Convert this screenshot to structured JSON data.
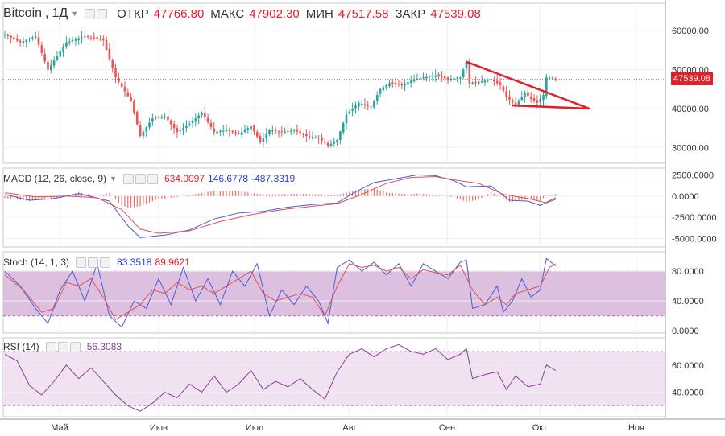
{
  "header": {
    "symbol": "Bitcoin",
    "interval": "1Д",
    "open_label": "ОТКР",
    "open": "47766.80",
    "high_label": "МАКС",
    "high": "47902.30",
    "low_label": "МИН",
    "low": "47517.58",
    "close_label": "ЗАКР",
    "close": "47539.08"
  },
  "last_price": "47539.08",
  "colors": {
    "up": "#26a69a",
    "down": "#ef5350",
    "drawing": "#e0202a",
    "macd": "#4a5ad8",
    "signal": "#e05050",
    "stoch_k": "#4a5ad8",
    "stoch_d": "#e05050",
    "rsi": "#8a3f98"
  },
  "macd": {
    "title": "MACD (12, 26, close, 9)",
    "v1": "634.0097",
    "v2": "146.6778",
    "v3": "-487.3319"
  },
  "stoch": {
    "title": "Stoch (14, 1, 3)",
    "k": "83.3518",
    "d": "89.9621"
  },
  "rsi": {
    "title": "RSI (14)",
    "v": "56.3083"
  },
  "chart_data": {
    "type": "candlestick",
    "x_labels": [
      "Май",
      "Июн",
      "Июл",
      "Авг",
      "Сен",
      "Окт",
      "Ноя"
    ],
    "price_axis": {
      "ticks": [
        "60000.00",
        "50000.00",
        "40000.00",
        "30000.00"
      ],
      "tick_values": [
        60000,
        50000,
        40000,
        30000
      ],
      "range": [
        26000,
        67000
      ]
    },
    "macd_axis": {
      "ticks": [
        "2500.0000",
        "0.0000",
        "-2500.0000",
        "-5000.0000"
      ],
      "tick_values": [
        2500,
        0,
        -2500,
        -5000
      ],
      "range": [
        -6000,
        3300
      ]
    },
    "stoch_axis": {
      "ticks": [
        "80.0000",
        "40.0000",
        "0.0000"
      ],
      "tick_values": [
        80,
        40,
        0
      ],
      "band": [
        20,
        80
      ],
      "range": [
        -3,
        106
      ]
    },
    "rsi_axis": {
      "ticks": [
        "60.0000",
        "40.0000"
      ],
      "tick_values": [
        60,
        40
      ],
      "band": [
        30,
        70
      ],
      "range": [
        22,
        80
      ]
    },
    "close_path": [
      [
        0,
        59000
      ],
      [
        5,
        57000
      ],
      [
        10,
        58500
      ],
      [
        14,
        50000
      ],
      [
        20,
        57000
      ],
      [
        26,
        58500
      ],
      [
        32,
        57500
      ],
      [
        36,
        48000
      ],
      [
        41,
        42000
      ],
      [
        44,
        33000
      ],
      [
        48,
        37500
      ],
      [
        52,
        38000
      ],
      [
        56,
        34000
      ],
      [
        60,
        36000
      ],
      [
        64,
        39000
      ],
      [
        68,
        34000
      ],
      [
        72,
        34500
      ],
      [
        76,
        33500
      ],
      [
        80,
        35500
      ],
      [
        83,
        31500
      ],
      [
        86,
        34500
      ],
      [
        90,
        34000
      ],
      [
        94,
        34500
      ],
      [
        98,
        33000
      ],
      [
        102,
        32500
      ],
      [
        105,
        30500
      ],
      [
        108,
        32000
      ],
      [
        111,
        38500
      ],
      [
        115,
        41500
      ],
      [
        119,
        40500
      ],
      [
        122,
        45000
      ],
      [
        125,
        46500
      ],
      [
        129,
        46000
      ],
      [
        133,
        47500
      ],
      [
        136,
        48000
      ],
      [
        140,
        48500
      ],
      [
        144,
        47500
      ],
      [
        148,
        48000
      ],
      [
        150,
        52000
      ],
      [
        151,
        46500
      ],
      [
        155,
        47000
      ],
      [
        158,
        47500
      ],
      [
        161,
        46000
      ],
      [
        163,
        43000
      ],
      [
        166,
        41000
      ],
      [
        169,
        44000
      ],
      [
        171,
        42500
      ],
      [
        173,
        41500
      ],
      [
        175,
        43500
      ],
      [
        176,
        48000
      ],
      [
        178,
        47900
      ],
      [
        179,
        47539
      ]
    ],
    "macd_path": [
      [
        0,
        200
      ],
      [
        8,
        -500
      ],
      [
        16,
        -300
      ],
      [
        24,
        300
      ],
      [
        34,
        -600
      ],
      [
        40,
        -3500
      ],
      [
        44,
        -4900
      ],
      [
        52,
        -4600
      ],
      [
        60,
        -4000
      ],
      [
        68,
        -2700
      ],
      [
        76,
        -2000
      ],
      [
        84,
        -1800
      ],
      [
        92,
        -1300
      ],
      [
        100,
        -1000
      ],
      [
        108,
        -800
      ],
      [
        114,
        500
      ],
      [
        120,
        1600
      ],
      [
        128,
        2100
      ],
      [
        134,
        2500
      ],
      [
        140,
        2400
      ],
      [
        146,
        1800
      ],
      [
        150,
        1100
      ],
      [
        158,
        1200
      ],
      [
        164,
        -500
      ],
      [
        170,
        -600
      ],
      [
        174,
        -1100
      ],
      [
        179,
        -200
      ]
    ],
    "signal_path": [
      [
        0,
        400
      ],
      [
        10,
        -100
      ],
      [
        20,
        0
      ],
      [
        30,
        -200
      ],
      [
        38,
        -1600
      ],
      [
        44,
        -3900
      ],
      [
        50,
        -4400
      ],
      [
        60,
        -4100
      ],
      [
        70,
        -3000
      ],
      [
        80,
        -2200
      ],
      [
        90,
        -1600
      ],
      [
        100,
        -1200
      ],
      [
        108,
        -900
      ],
      [
        116,
        200
      ],
      [
        124,
        1500
      ],
      [
        132,
        2200
      ],
      [
        140,
        2300
      ],
      [
        148,
        1800
      ],
      [
        154,
        1500
      ],
      [
        162,
        200
      ],
      [
        170,
        -300
      ],
      [
        176,
        -800
      ],
      [
        179,
        -400
      ]
    ],
    "stoch_k_path": [
      [
        0,
        80
      ],
      [
        5,
        60
      ],
      [
        10,
        30
      ],
      [
        14,
        10
      ],
      [
        18,
        55
      ],
      [
        22,
        80
      ],
      [
        26,
        40
      ],
      [
        30,
        90
      ],
      [
        34,
        20
      ],
      [
        38,
        5
      ],
      [
        42,
        40
      ],
      [
        46,
        30
      ],
      [
        50,
        70
      ],
      [
        54,
        35
      ],
      [
        58,
        85
      ],
      [
        62,
        40
      ],
      [
        66,
        70
      ],
      [
        70,
        35
      ],
      [
        74,
        80
      ],
      [
        78,
        60
      ],
      [
        82,
        90
      ],
      [
        86,
        20
      ],
      [
        90,
        55
      ],
      [
        94,
        35
      ],
      [
        98,
        60
      ],
      [
        102,
        40
      ],
      [
        105,
        10
      ],
      [
        108,
        85
      ],
      [
        112,
        95
      ],
      [
        116,
        80
      ],
      [
        120,
        92
      ],
      [
        124,
        75
      ],
      [
        128,
        90
      ],
      [
        132,
        60
      ],
      [
        136,
        90
      ],
      [
        140,
        80
      ],
      [
        144,
        70
      ],
      [
        148,
        92
      ],
      [
        150,
        95
      ],
      [
        152,
        30
      ],
      [
        156,
        35
      ],
      [
        160,
        60
      ],
      [
        162,
        25
      ],
      [
        165,
        40
      ],
      [
        168,
        70
      ],
      [
        171,
        45
      ],
      [
        174,
        55
      ],
      [
        176,
        97
      ],
      [
        179,
        87
      ]
    ],
    "stoch_d_path": [
      [
        0,
        75
      ],
      [
        6,
        55
      ],
      [
        12,
        25
      ],
      [
        16,
        30
      ],
      [
        20,
        65
      ],
      [
        24,
        60
      ],
      [
        28,
        70
      ],
      [
        32,
        45
      ],
      [
        36,
        15
      ],
      [
        40,
        25
      ],
      [
        44,
        35
      ],
      [
        48,
        55
      ],
      [
        52,
        50
      ],
      [
        56,
        65
      ],
      [
        60,
        55
      ],
      [
        64,
        60
      ],
      [
        68,
        50
      ],
      [
        72,
        60
      ],
      [
        76,
        70
      ],
      [
        80,
        80
      ],
      [
        84,
        50
      ],
      [
        88,
        40
      ],
      [
        92,
        45
      ],
      [
        96,
        50
      ],
      [
        100,
        45
      ],
      [
        104,
        20
      ],
      [
        108,
        60
      ],
      [
        112,
        90
      ],
      [
        116,
        85
      ],
      [
        120,
        88
      ],
      [
        124,
        80
      ],
      [
        128,
        85
      ],
      [
        132,
        70
      ],
      [
        136,
        82
      ],
      [
        140,
        78
      ],
      [
        144,
        75
      ],
      [
        148,
        88
      ],
      [
        152,
        55
      ],
      [
        156,
        35
      ],
      [
        160,
        45
      ],
      [
        163,
        35
      ],
      [
        166,
        50
      ],
      [
        170,
        55
      ],
      [
        174,
        60
      ],
      [
        177,
        85
      ],
      [
        179,
        90
      ]
    ],
    "rsi_path": [
      [
        0,
        68
      ],
      [
        4,
        63
      ],
      [
        8,
        45
      ],
      [
        12,
        38
      ],
      [
        16,
        48
      ],
      [
        20,
        60
      ],
      [
        24,
        50
      ],
      [
        28,
        58
      ],
      [
        32,
        48
      ],
      [
        36,
        38
      ],
      [
        40,
        30
      ],
      [
        44,
        26
      ],
      [
        48,
        32
      ],
      [
        52,
        40
      ],
      [
        56,
        36
      ],
      [
        60,
        46
      ],
      [
        64,
        40
      ],
      [
        68,
        52
      ],
      [
        72,
        40
      ],
      [
        76,
        46
      ],
      [
        80,
        56
      ],
      [
        84,
        42
      ],
      [
        88,
        48
      ],
      [
        92,
        44
      ],
      [
        96,
        50
      ],
      [
        100,
        42
      ],
      [
        104,
        35
      ],
      [
        108,
        55
      ],
      [
        112,
        68
      ],
      [
        116,
        72
      ],
      [
        120,
        66
      ],
      [
        124,
        72
      ],
      [
        128,
        75
      ],
      [
        132,
        70
      ],
      [
        136,
        68
      ],
      [
        140,
        72
      ],
      [
        144,
        64
      ],
      [
        148,
        68
      ],
      [
        150,
        72
      ],
      [
        152,
        50
      ],
      [
        156,
        53
      ],
      [
        160,
        55
      ],
      [
        163,
        42
      ],
      [
        166,
        52
      ],
      [
        170,
        44
      ],
      [
        174,
        46
      ],
      [
        176,
        60
      ],
      [
        179,
        56
      ]
    ],
    "triangle": {
      "top": [
        [
          150,
          52000
        ],
        [
          190,
          40000
        ]
      ],
      "bottom": [
        [
          165,
          40800
        ],
        [
          190,
          40000
        ]
      ]
    }
  }
}
